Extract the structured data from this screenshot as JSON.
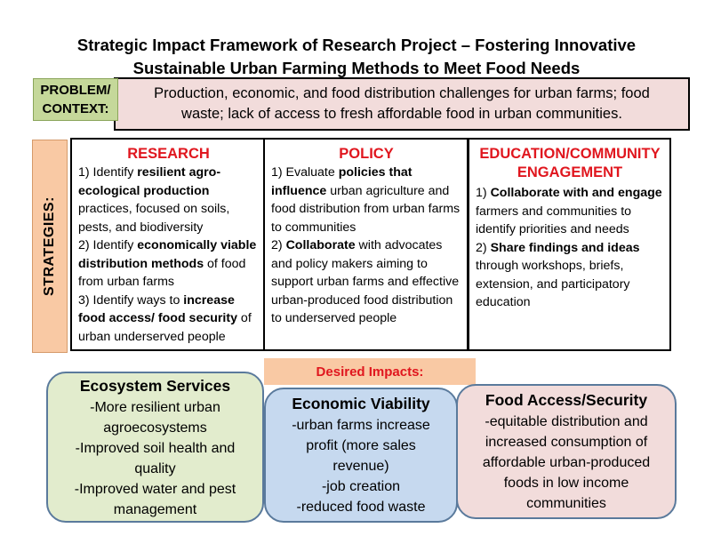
{
  "title_line1": "Strategic Impact Framework of Research Project – Fostering Innovative",
  "title_line2": "Sustainable Urban Farming Methods to Meet Food Needs",
  "problem": {
    "label_line1": "PROBLEM/",
    "label_line2": "CONTEXT:",
    "text_line1": "Production, economic, and food distribution challenges for urban farms; food",
    "text_line2": "waste; lack of access to fresh affordable food in urban communities."
  },
  "strategies_label": "STRATEGIES:",
  "research": {
    "heading": "RESEARCH",
    "item1_pre": "1) Identify ",
    "item1_bold": "resilient agro-ecological production",
    "item1_post": " practices, focused on soils, pests, and biodiversity",
    "item2_pre": "2) Identify ",
    "item2_bold": "economically viable distribution methods",
    "item2_post": " of food from urban farms",
    "item3_pre": "3) Identify ways to ",
    "item3_bold": "increase food access/ food security",
    "item3_post": " of urban underserved people"
  },
  "policy": {
    "heading": "POLICY",
    "item1_pre": "1) Evaluate ",
    "item1_bold": "policies that influence",
    "item1_post": " urban agriculture and food distribution from urban farms to communities",
    "item2_pre": "2) ",
    "item2_bold": "Collaborate",
    "item2_post": " with advocates and policy makers aiming to support urban farms and effective urban-produced food distribution to underserved people"
  },
  "education": {
    "heading_line1": "EDUCATION/COMMUNITY",
    "heading_line2": "ENGAGEMENT",
    "item1_pre": "1) ",
    "item1_bold": "Collaborate with and engage",
    "item1_post": " farmers and communities to identify priorities and needs",
    "item2_pre": "2) ",
    "item2_bold": "Share findings and ideas",
    "item2_post": " through workshops, briefs, extension, and participatory education"
  },
  "desired_impacts": "Desired Impacts:",
  "impacts": {
    "ecosystem": {
      "title": "Ecosystem Services",
      "lines": [
        "-More resilient urban",
        "agroecosystems",
        "-Improved soil health and",
        "quality",
        "-Improved water and pest",
        "management"
      ]
    },
    "economic": {
      "title": "Economic Viability",
      "lines": [
        "-urban farms increase",
        "profit (more sales",
        "revenue)",
        "-job creation",
        "-reduced food waste"
      ]
    },
    "food": {
      "title": "Food Access/Security",
      "lines": [
        "-equitable distribution and",
        "increased consumption of",
        "affordable urban-produced",
        "foods in low income",
        "communities"
      ]
    }
  }
}
